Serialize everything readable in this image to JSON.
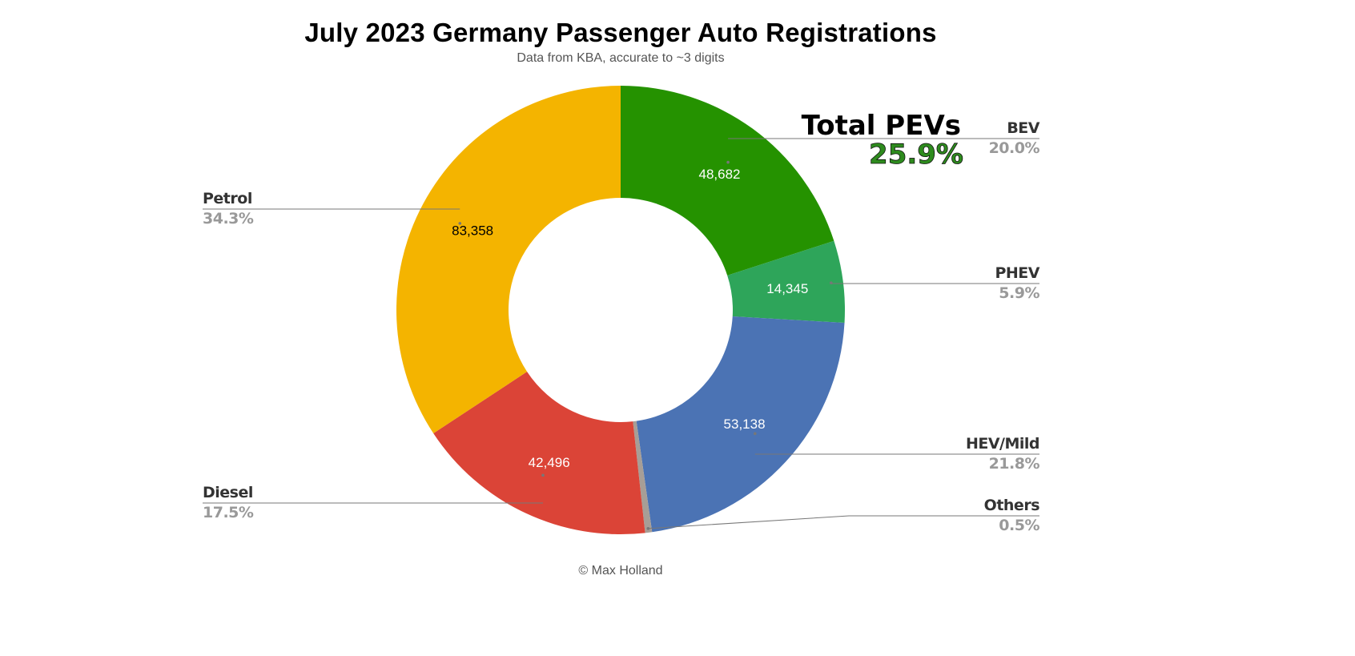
{
  "title": "July 2023 Germany Passenger Auto Registrations",
  "subtitle": "Data from KBA, accurate to ~3 digits",
  "footer": "© Max Holland",
  "annotation": {
    "label": "Total PEVs",
    "value": "25.9%"
  },
  "chart_data": {
    "type": "pie",
    "style": "donut",
    "title": "July 2023 Germany Passenger Auto Registrations",
    "subtitle": "Data from KBA, accurate to ~3 digits",
    "series": [
      {
        "name": "BEV",
        "value": 48682,
        "value_label": "48,682",
        "percent": "20.0%",
        "color": "#259200",
        "value_color": "#ffffff"
      },
      {
        "name": "PHEV",
        "value": 14345,
        "value_label": "14,345",
        "percent": "5.9%",
        "color": "#2ea55a",
        "value_color": "#ffffff"
      },
      {
        "name": "HEV/Mild",
        "value": 53138,
        "value_label": "53,138",
        "percent": "21.8%",
        "color": "#4b73b4",
        "value_color": "#ffffff"
      },
      {
        "name": "Others",
        "value": 1210,
        "value_label": "",
        "percent": "0.5%",
        "color": "#a79e96",
        "value_color": "#ffffff"
      },
      {
        "name": "Diesel",
        "value": 42496,
        "value_label": "42,496",
        "percent": "17.5%",
        "color": "#db4437",
        "value_color": "#ffffff"
      },
      {
        "name": "Petrol",
        "value": 83358,
        "value_label": "83,358",
        "percent": "34.3%",
        "color": "#f4b400",
        "value_color": "#000000"
      }
    ]
  }
}
